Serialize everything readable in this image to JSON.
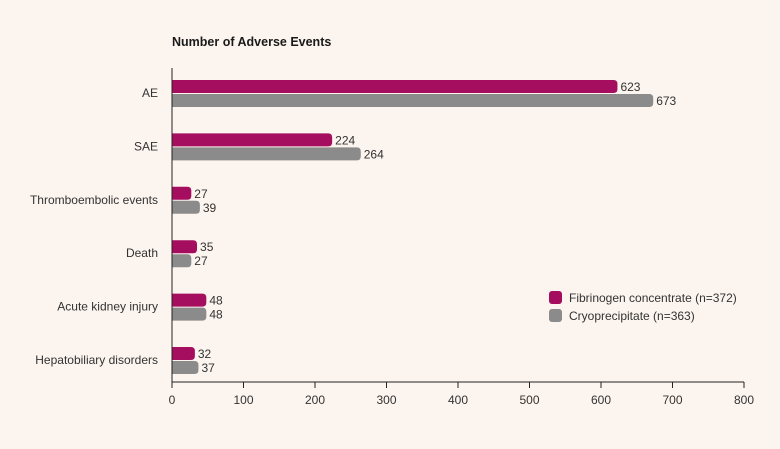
{
  "chart_data": {
    "type": "bar",
    "orientation": "horizontal",
    "title": "Number of Adverse Events",
    "xlabel": "",
    "ylabel": "",
    "xlim": [
      0,
      800
    ],
    "xticks": [
      0,
      100,
      200,
      300,
      400,
      500,
      600,
      700,
      800
    ],
    "categories": [
      "AE",
      "SAE",
      "Thromboembolic events",
      "Death",
      "Acute kidney injury",
      "Hepatobiliary disorders"
    ],
    "series": [
      {
        "name": "Fibrinogen concentrate (n=372)",
        "color": "#a50e5e",
        "values": [
          623,
          224,
          27,
          35,
          48,
          32
        ]
      },
      {
        "name": "Cryoprecipitate (n=363)",
        "color": "#8b8b8b",
        "values": [
          673,
          264,
          39,
          27,
          48,
          37
        ]
      }
    ],
    "grid": false,
    "legend_position": "right"
  }
}
